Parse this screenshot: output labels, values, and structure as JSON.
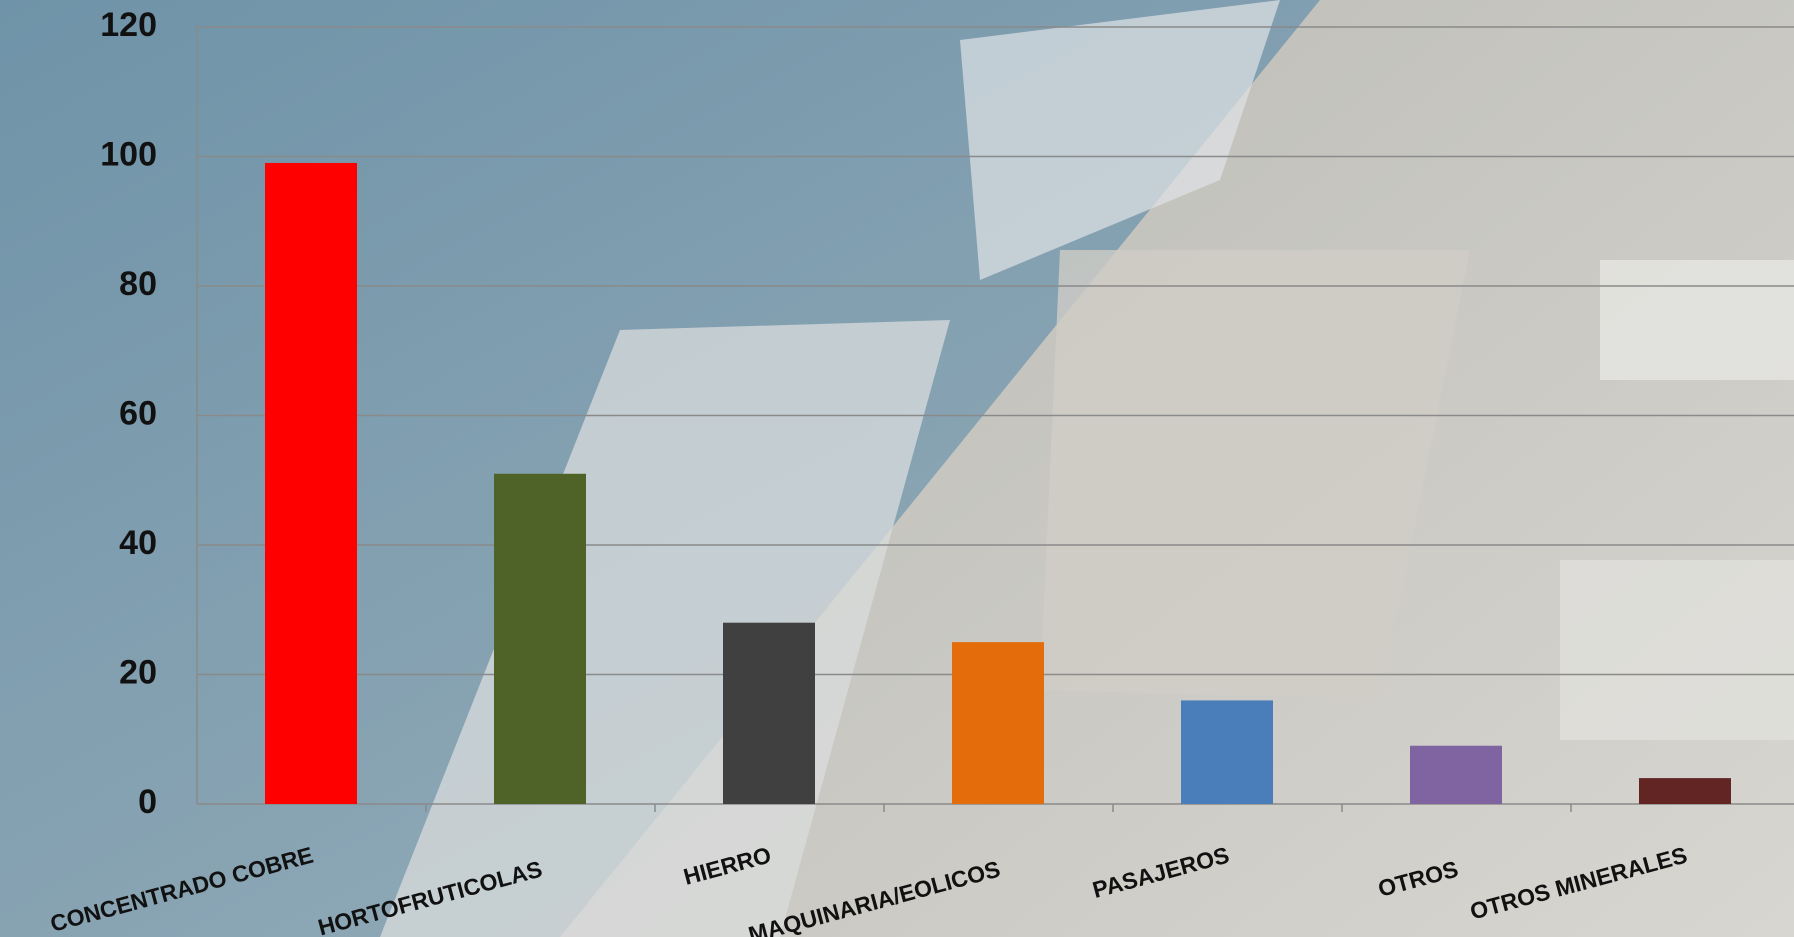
{
  "chart_data": {
    "type": "bar",
    "categories": [
      "CONCENTRADO COBRE",
      "HORTOFRUTICOLAS",
      "HIERRO",
      "MAQUINARIA/EOLICOS",
      "PASAJEROS",
      "OTROS",
      "OTROS MINERALES"
    ],
    "values": [
      99,
      51,
      28,
      25,
      16,
      9,
      4
    ],
    "colors": [
      "#ff0000",
      "#4f6228",
      "#404040",
      "#e46c0a",
      "#4a7ebb",
      "#8064a2",
      "#632523"
    ],
    "ylim": [
      0,
      120
    ],
    "yticks": [
      0,
      20,
      40,
      60,
      80,
      100,
      120
    ],
    "grid": true
  }
}
